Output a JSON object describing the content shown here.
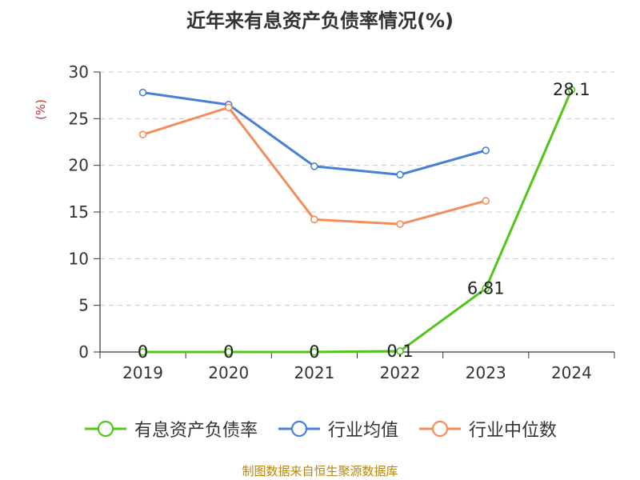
{
  "title": "近年来有息资产负债率情况(%)",
  "footer": "制图数据来自恒生聚源数据库",
  "chart_data": {
    "type": "line",
    "title": "近年来有息资产负债率情况(%)",
    "ylabel": "(%)",
    "xlabel": "",
    "categories": [
      "2019",
      "2020",
      "2021",
      "2022",
      "2023",
      "2024"
    ],
    "ylim": [
      0,
      30
    ],
    "yticks": [
      0,
      5,
      10,
      15,
      20,
      25,
      30
    ],
    "grid": true,
    "legend_position": "bottom",
    "series": [
      {
        "name": "有息资产负债率",
        "color": "#52c41a",
        "values": [
          0,
          0,
          0,
          0.1,
          6.81,
          28.1
        ],
        "labels": [
          "0",
          "0",
          "0",
          "0.1",
          "6.81",
          "28.1"
        ]
      },
      {
        "name": "行业均值",
        "color": "#4a7fd6",
        "values": [
          27.8,
          26.5,
          19.9,
          19.0,
          21.6,
          null
        ]
      },
      {
        "name": "行业中位数",
        "color": "#f28e5c",
        "values": [
          23.3,
          26.2,
          14.2,
          13.7,
          16.2,
          null
        ]
      }
    ]
  }
}
